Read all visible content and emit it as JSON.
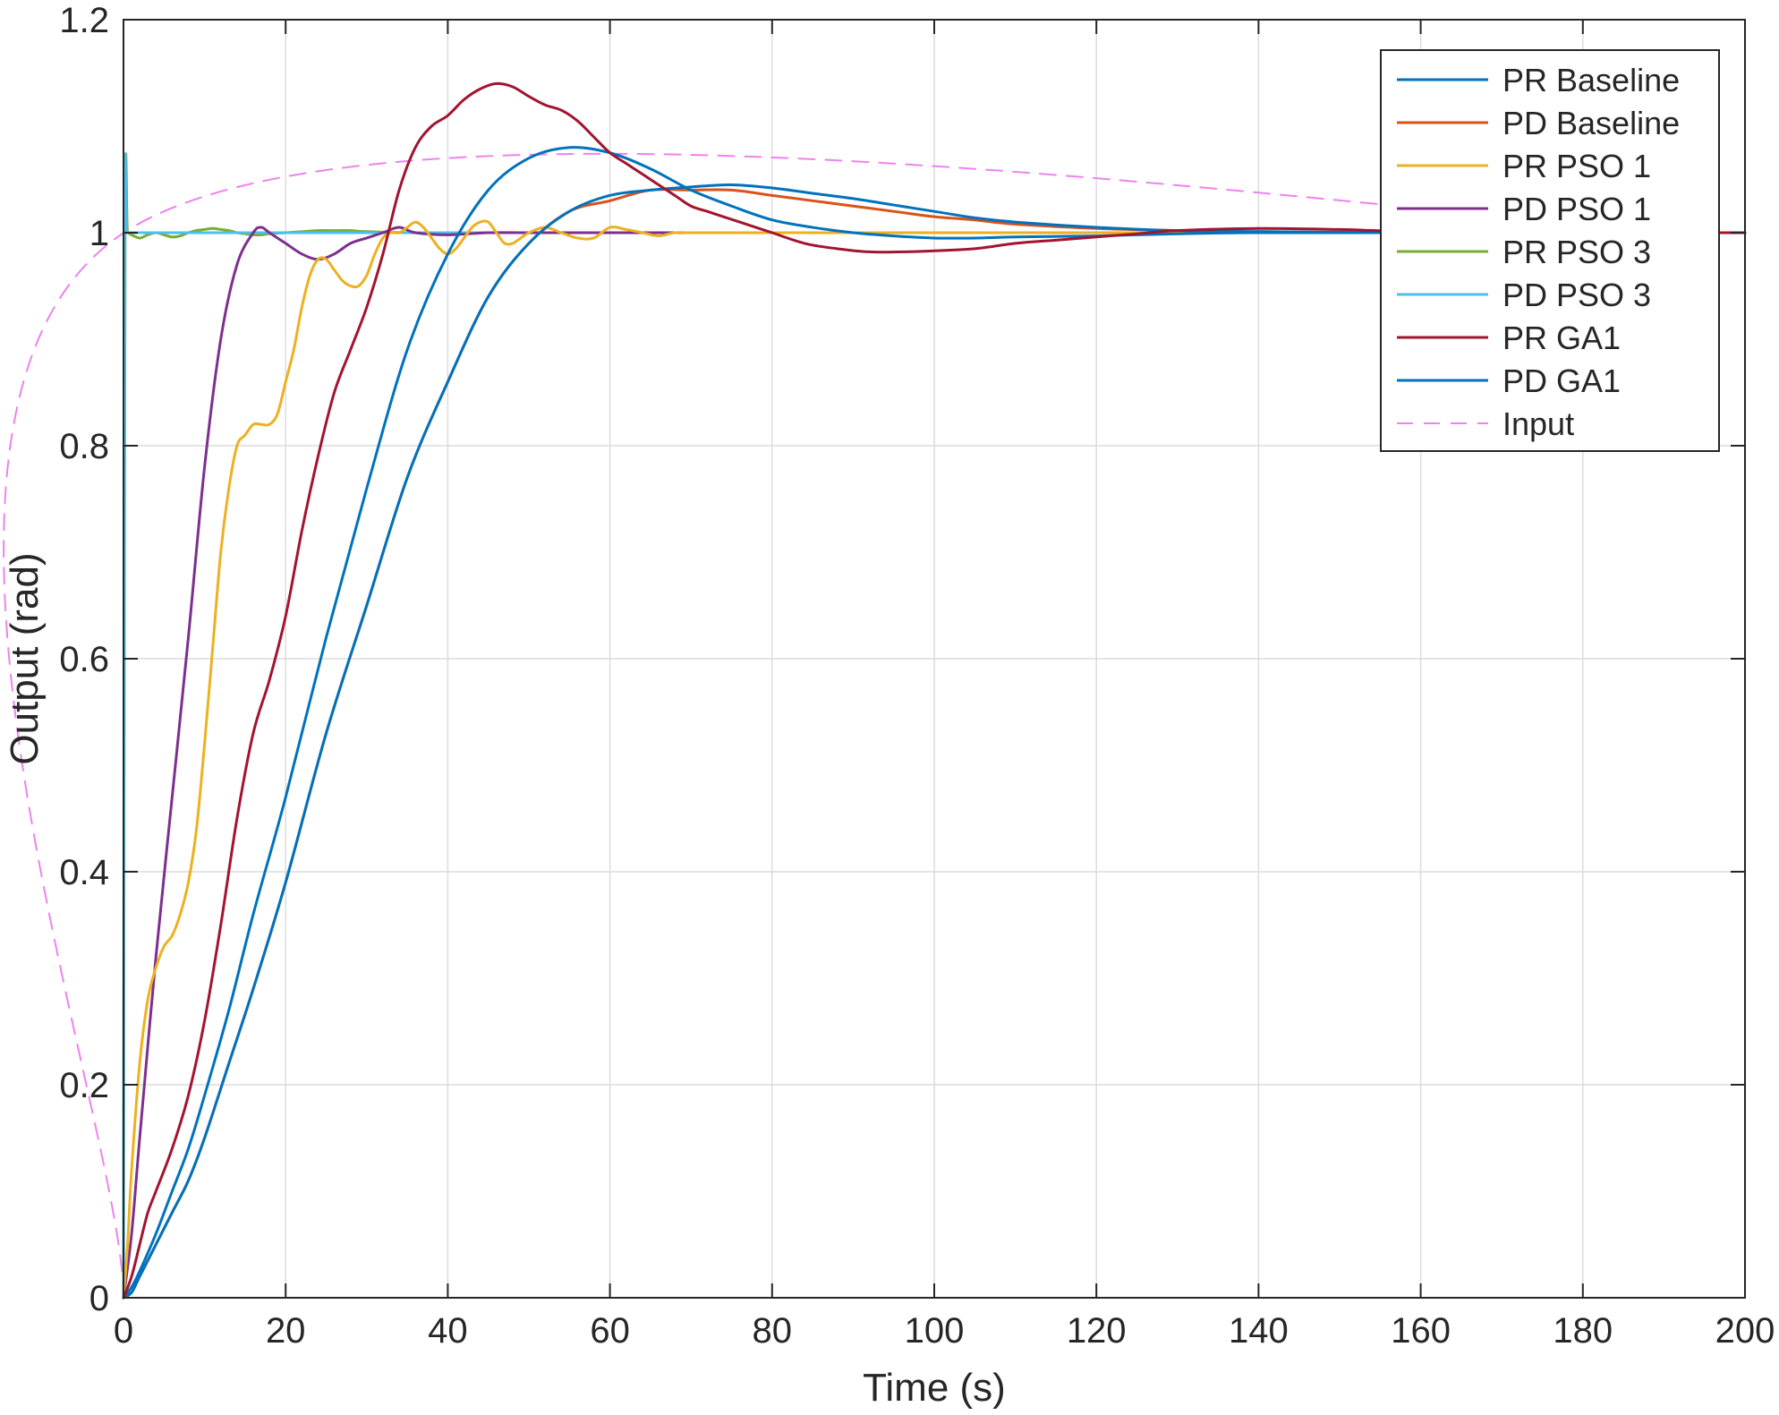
{
  "chart_data": {
    "type": "line",
    "title": "",
    "xlabel": "Time (s)",
    "ylabel": "Output (rad)",
    "xlim": [
      0,
      200
    ],
    "ylim": [
      0,
      1.2
    ],
    "xticks": [
      0,
      20,
      40,
      60,
      80,
      100,
      120,
      140,
      160,
      180,
      200
    ],
    "xtick_labels": [
      "0",
      "20",
      "40",
      "60",
      "80",
      "100",
      "120",
      "140",
      "160",
      "180",
      "200"
    ],
    "yticks": [
      0,
      0.2,
      0.4,
      0.6,
      0.8,
      1.0,
      1.2
    ],
    "ytick_labels": [
      "0",
      "0.2",
      "0.4",
      "0.6",
      "0.8",
      "1",
      "1.2"
    ],
    "grid": true,
    "legend_position": "top-right",
    "series": [
      {
        "name": "PR Baseline",
        "color": "#0072BD",
        "dash": "solid",
        "x": [
          0,
          1,
          2,
          4,
          6,
          8,
          10,
          13,
          16,
          20,
          25,
          30,
          35,
          40,
          45,
          50,
          55,
          60,
          65,
          70,
          75,
          80,
          85,
          90,
          95,
          100,
          105,
          110,
          120,
          130,
          140,
          160,
          180,
          200
        ],
        "y": [
          0,
          0.01,
          0.025,
          0.06,
          0.1,
          0.14,
          0.19,
          0.27,
          0.36,
          0.47,
          0.62,
          0.76,
          0.89,
          0.98,
          1.04,
          1.07,
          1.08,
          1.075,
          1.06,
          1.04,
          1.025,
          1.012,
          1.005,
          1.0,
          0.997,
          0.995,
          0.995,
          0.996,
          0.997,
          0.999,
          1.0,
          1.0,
          1.0,
          1.0
        ]
      },
      {
        "name": "PD Baseline",
        "color": "#D95319",
        "dash": "solid",
        "x": [
          0,
          1,
          2,
          4,
          6,
          8,
          10,
          13,
          16,
          20,
          25,
          30,
          35,
          40,
          45,
          50,
          55,
          60,
          65,
          70,
          75,
          80,
          85,
          90,
          95,
          100,
          105,
          110,
          120,
          130,
          140,
          160,
          180,
          200
        ],
        "y": [
          0,
          0.005,
          0.02,
          0.05,
          0.08,
          0.11,
          0.15,
          0.22,
          0.29,
          0.39,
          0.53,
          0.65,
          0.77,
          0.86,
          0.94,
          0.99,
          1.02,
          1.03,
          1.04,
          1.04,
          1.04,
          1.035,
          1.03,
          1.025,
          1.02,
          1.015,
          1.012,
          1.008,
          1.004,
          1.002,
          1.001,
          1.0,
          1.0,
          1.0
        ]
      },
      {
        "name": "PR PSO 1",
        "color": "#EDB120",
        "dash": "solid",
        "x": [
          0,
          0.5,
          1,
          2,
          3,
          4,
          5,
          6,
          7,
          8,
          9,
          10,
          11,
          12,
          13,
          14,
          15,
          16,
          17,
          18,
          19,
          20,
          21,
          22,
          23,
          24,
          25,
          26,
          27,
          28,
          29,
          30,
          31,
          32,
          33,
          34,
          35,
          36,
          37,
          38,
          39,
          40,
          41,
          42,
          43,
          44,
          45,
          46,
          47,
          48,
          49,
          50,
          52,
          54,
          56,
          58,
          60,
          62,
          64,
          66,
          68,
          70,
          75,
          80,
          90,
          100,
          120,
          140,
          160,
          180,
          200
        ],
        "y": [
          0,
          0.05,
          0.12,
          0.22,
          0.28,
          0.31,
          0.33,
          0.34,
          0.36,
          0.39,
          0.44,
          0.52,
          0.61,
          0.7,
          0.76,
          0.8,
          0.81,
          0.82,
          0.82,
          0.82,
          0.83,
          0.86,
          0.89,
          0.93,
          0.96,
          0.975,
          0.975,
          0.965,
          0.955,
          0.95,
          0.95,
          0.96,
          0.98,
          0.995,
          1.0,
          1.0,
          1.005,
          1.01,
          1.005,
          0.995,
          0.985,
          0.98,
          0.985,
          0.995,
          1.005,
          1.01,
          1.01,
          1.0,
          0.99,
          0.99,
          0.995,
          1.0,
          1.005,
          1.0,
          0.995,
          0.995,
          1.005,
          1.003,
          1.0,
          0.997,
          1.0,
          1.0,
          1.0,
          1.0,
          1.0,
          1.0,
          1.0,
          1.0,
          1.0,
          1.0,
          1.0
        ]
      },
      {
        "name": "PD PSO 1",
        "color": "#7E2F8E",
        "dash": "solid",
        "x": [
          0,
          1,
          2,
          4,
          6,
          8,
          10,
          12,
          14,
          16,
          17,
          18,
          20,
          22,
          24,
          26,
          28,
          30,
          32,
          34,
          36,
          40,
          45,
          50,
          60,
          80,
          100,
          120,
          140,
          160,
          180,
          200
        ],
        "y": [
          0,
          0.06,
          0.15,
          0.32,
          0.47,
          0.62,
          0.78,
          0.9,
          0.97,
          1.0,
          1.005,
          1.0,
          0.99,
          0.98,
          0.975,
          0.98,
          0.99,
          0.995,
          1.0,
          1.005,
          1.0,
          0.998,
          1.0,
          1.0,
          1.0,
          1.0,
          1.0,
          1.0,
          1.0,
          1.0,
          1.0,
          1.0
        ]
      },
      {
        "name": "PR PSO 3",
        "color": "#77AC30",
        "dash": "solid",
        "x": [
          0,
          0.2,
          0.5,
          1,
          2,
          3,
          4,
          5,
          6,
          7,
          8,
          9,
          10,
          11,
          12,
          13,
          14,
          15,
          16,
          17,
          18,
          20,
          22,
          24,
          26,
          28,
          30,
          35,
          40,
          50,
          60,
          80,
          100,
          120,
          140,
          160,
          180,
          200
        ],
        "y": [
          0,
          1.0,
          1.0,
          0.998,
          0.995,
          0.998,
          1.0,
          0.998,
          0.996,
          0.997,
          1.0,
          1.002,
          1.003,
          1.004,
          1.003,
          1.002,
          1.0,
          0.999,
          0.998,
          0.998,
          0.999,
          1.0,
          1.001,
          1.002,
          1.002,
          1.002,
          1.001,
          1.0,
          1.0,
          1.0,
          1.0,
          1.0,
          1.0,
          1.0,
          1.0,
          1.0,
          1.0,
          1.0
        ]
      },
      {
        "name": "PD PSO 3",
        "color": "#4DBEEE",
        "dash": "solid",
        "x": [
          0,
          0.15,
          0.4,
          1,
          5,
          10,
          20,
          40,
          60,
          80,
          100,
          120,
          140,
          160,
          180,
          200
        ],
        "y": [
          0,
          1.0,
          1.0,
          1.0,
          1.0,
          1.0,
          1.0,
          1.0,
          1.0,
          1.0,
          1.0,
          1.0,
          1.0,
          1.0,
          1.0,
          1.0
        ]
      },
      {
        "name": "PR GA1",
        "color": "#A2142F",
        "dash": "solid",
        "x": [
          0,
          1,
          2,
          3,
          4,
          6,
          8,
          10,
          12,
          14,
          16,
          18,
          20,
          22,
          24,
          26,
          28,
          30,
          32,
          34,
          36,
          38,
          40,
          42,
          44,
          46,
          48,
          50,
          52,
          54,
          56,
          58,
          60,
          62,
          64,
          66,
          68,
          70,
          72,
          74,
          76,
          78,
          80,
          84,
          88,
          92,
          96,
          100,
          105,
          110,
          115,
          120,
          125,
          130,
          140,
          150,
          160,
          180,
          200
        ],
        "y": [
          0,
          0.02,
          0.05,
          0.08,
          0.1,
          0.14,
          0.19,
          0.26,
          0.35,
          0.45,
          0.53,
          0.58,
          0.64,
          0.72,
          0.79,
          0.85,
          0.89,
          0.93,
          0.98,
          1.04,
          1.08,
          1.1,
          1.11,
          1.125,
          1.135,
          1.14,
          1.137,
          1.128,
          1.12,
          1.115,
          1.105,
          1.09,
          1.075,
          1.065,
          1.055,
          1.045,
          1.035,
          1.025,
          1.02,
          1.015,
          1.01,
          1.005,
          1.0,
          0.99,
          0.985,
          0.982,
          0.982,
          0.983,
          0.985,
          0.99,
          0.993,
          0.996,
          0.999,
          1.002,
          1.004,
          1.003,
          1.001,
          1.0,
          1.0
        ]
      },
      {
        "name": "PD GA1",
        "color": "#0072BD",
        "dash": "solid",
        "x": [
          0,
          1,
          2,
          4,
          6,
          8,
          10,
          13,
          16,
          20,
          25,
          30,
          35,
          40,
          45,
          50,
          55,
          60,
          65,
          70,
          75,
          80,
          85,
          90,
          95,
          100,
          105,
          110,
          120,
          130,
          140,
          160,
          180,
          200
        ],
        "y": [
          0,
          0.005,
          0.02,
          0.05,
          0.08,
          0.11,
          0.15,
          0.22,
          0.29,
          0.39,
          0.53,
          0.65,
          0.77,
          0.86,
          0.94,
          0.99,
          1.02,
          1.035,
          1.04,
          1.043,
          1.045,
          1.042,
          1.037,
          1.032,
          1.026,
          1.02,
          1.014,
          1.01,
          1.005,
          1.002,
          1.001,
          1.0,
          1.0,
          1.0
        ]
      },
      {
        "name": "Input",
        "color": "#EE82EE",
        "dash": "dashed",
        "x": [
          0,
          0.05,
          200
        ],
        "y": [
          0,
          1.0,
          1.0
        ]
      }
    ]
  }
}
